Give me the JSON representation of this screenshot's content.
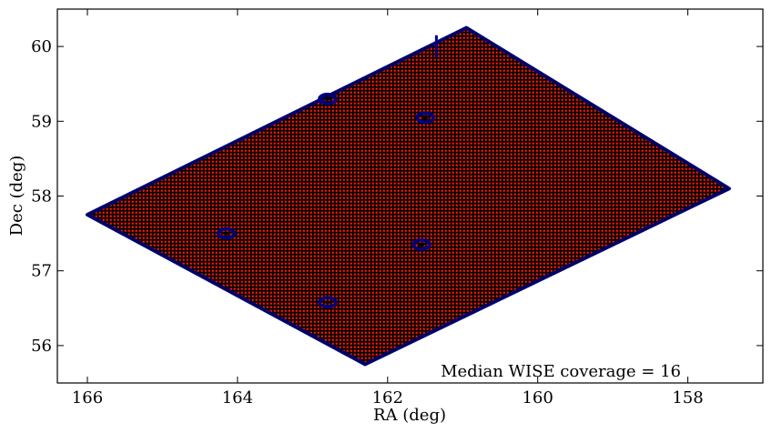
{
  "chart_data": {
    "type": "scatter",
    "title": "",
    "xlabel": "RA (deg)",
    "ylabel": "Dec (deg)",
    "xlim": [
      166.4,
      157.0
    ],
    "ylim": [
      55.5,
      60.5
    ],
    "x_axis_inverted": true,
    "grid": false,
    "xticks": [
      166,
      164,
      162,
      160,
      158
    ],
    "yticks": [
      56,
      57,
      58,
      59,
      60
    ],
    "xtick_labels": [
      "166",
      "164",
      "162",
      "160",
      "158"
    ],
    "ytick_labels": [
      "56",
      "57",
      "58",
      "59",
      "60"
    ],
    "annotation": "Median WISE coverage = 16",
    "series": [
      {
        "role": "sources with normal coverage",
        "marker": "dot",
        "color": "#ff0000",
        "edge_color": "#000000",
        "footprint_corners": [
          {
            "ra": 166.0,
            "dec": 57.75
          },
          {
            "ra": 160.95,
            "dec": 60.25
          },
          {
            "ra": 157.45,
            "dec": 58.1
          },
          {
            "ra": 162.3,
            "dec": 55.75
          }
        ]
      },
      {
        "role": "sources with low coverage (edges and holes)",
        "marker": "dot",
        "color": "#000080",
        "holes": [
          {
            "ra": 162.8,
            "dec": 59.3
          },
          {
            "ra": 161.5,
            "dec": 59.05
          },
          {
            "ra": 164.15,
            "dec": 57.5
          },
          {
            "ra": 161.55,
            "dec": 57.35
          },
          {
            "ra": 162.8,
            "dec": 56.58
          }
        ]
      }
    ]
  },
  "colors": {
    "main_points": "#ff0000",
    "edge_points": "#000080",
    "point_edge": "#000000"
  }
}
